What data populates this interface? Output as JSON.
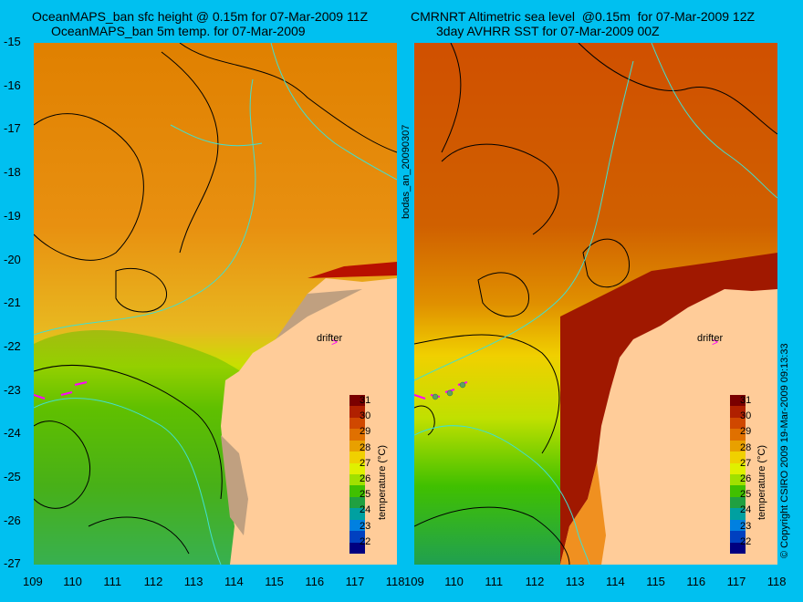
{
  "titles": {
    "left_line1": "OceanMAPS_ban sfc height @ 0.15m for 07-Mar-2009 11Z",
    "left_line2": "OceanMAPS_ban 5m temp. for 07-Mar-2009",
    "right_line1": "CMRNRT Altimetric sea level  @0.15m  for 07-Mar-2009 12Z",
    "right_line2": "3day AVHRR SST for 07-Mar-2009 00Z"
  },
  "axes": {
    "lat_ticks": [
      "-15",
      "-16",
      "-17",
      "-18",
      "-19",
      "-20",
      "-21",
      "-22",
      "-23",
      "-24",
      "-25",
      "-26",
      "-27"
    ],
    "lon_ticks": [
      "109",
      "110",
      "111",
      "112",
      "113",
      "114",
      "115",
      "116",
      "117",
      "118"
    ]
  },
  "colorbar": {
    "label": "temperature (°C)",
    "ticks": [
      "31",
      "30",
      "29",
      "28",
      "27",
      "26",
      "25",
      "24",
      "23",
      "22"
    ],
    "colors": [
      "#7a0000",
      "#b02000",
      "#d04800",
      "#e07000",
      "#e8a000",
      "#f0d000",
      "#e0f000",
      "#a0e000",
      "#40c000",
      "#20a040",
      "#00a0a0",
      "#0080e0",
      "#0040c0",
      "#000080"
    ]
  },
  "annotations": {
    "drifter_left": "drifter",
    "drifter_right": "drifter",
    "side_left": "bodas_an_20090307",
    "side_right": "© Copyright CSIRO 2009    19-Mar-2009 09:13:33"
  }
}
